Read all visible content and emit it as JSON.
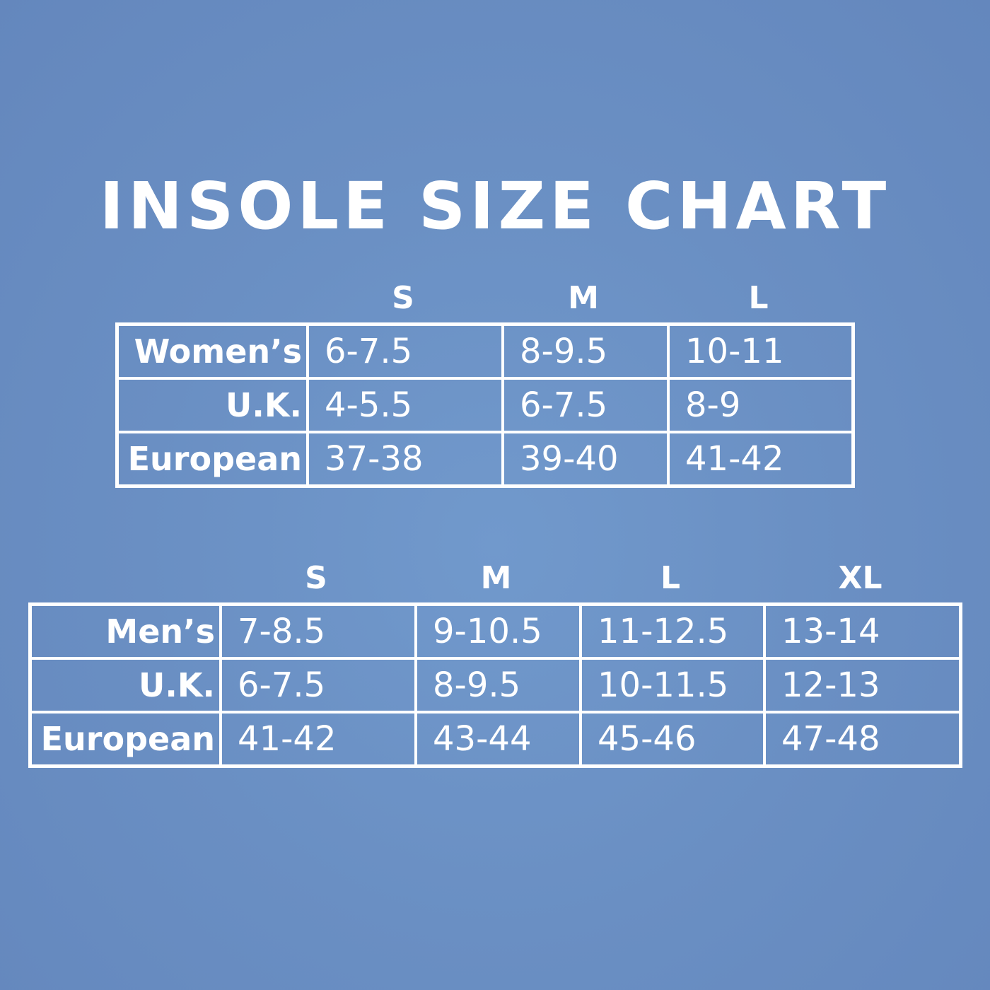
{
  "title": "INSOLE SIZE CHART",
  "tables": [
    {
      "headers": [
        "S",
        "M",
        "L"
      ],
      "rows": [
        {
          "label": "Women’s",
          "cells": [
            "6-7.5",
            "8-9.5",
            "10-11"
          ]
        },
        {
          "label": "U.K.",
          "cells": [
            "4-5.5",
            "6-7.5",
            "8-9"
          ]
        },
        {
          "label": "European",
          "cells": [
            "37-38",
            "39-40",
            "41-42"
          ]
        }
      ]
    },
    {
      "headers": [
        "S",
        "M",
        "L",
        "XL"
      ],
      "rows": [
        {
          "label": "Men’s",
          "cells": [
            "7-8.5",
            "9-10.5",
            "11-12.5",
            "13-14"
          ]
        },
        {
          "label": "U.K.",
          "cells": [
            "6-7.5",
            "8-9.5",
            "10-11.5",
            "12-13"
          ]
        },
        {
          "label": "European",
          "cells": [
            "41-42",
            "43-44",
            "45-46",
            "47-48"
          ]
        }
      ]
    }
  ]
}
